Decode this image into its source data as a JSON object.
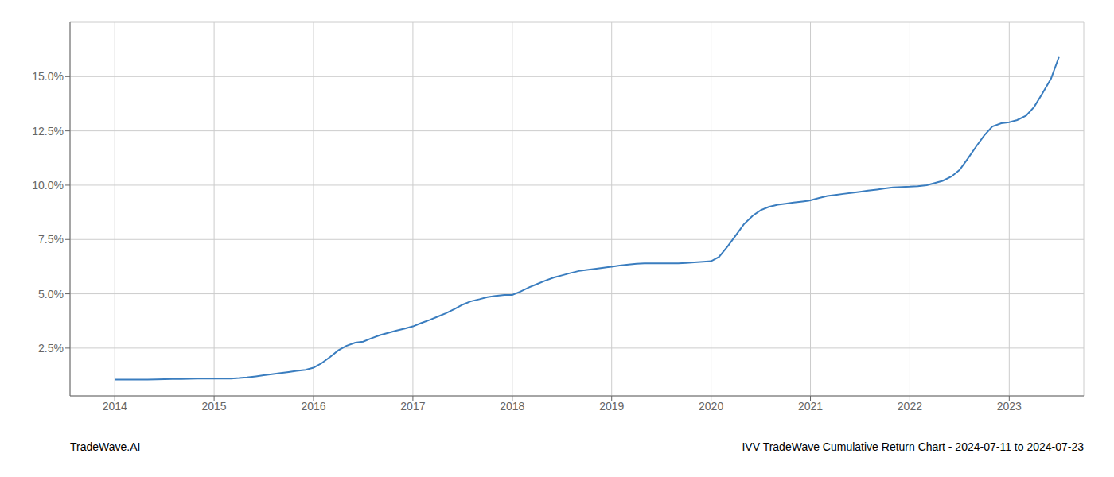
{
  "chart_data": {
    "type": "line",
    "title": "IVV TradeWave Cumulative Return Chart - 2024-07-11 to 2024-07-23",
    "annotations": [
      "TradeWave.AI"
    ],
    "color": "#3a7dbf",
    "grid": true,
    "xlim": [
      2013.55,
      2023.75
    ],
    "xticks": [
      2014,
      2015,
      2016,
      2017,
      2018,
      2019,
      2020,
      2021,
      2022,
      2023
    ],
    "ylim": [
      0.3,
      17.5
    ],
    "yticks": [
      {
        "value": 2.5,
        "label": "2.5%"
      },
      {
        "value": 5.0,
        "label": "5.0%"
      },
      {
        "value": 7.5,
        "label": "7.5%"
      },
      {
        "value": 10.0,
        "label": "10.0%"
      },
      {
        "value": 12.5,
        "label": "12.5%"
      },
      {
        "value": 15.0,
        "label": "15.0%"
      }
    ],
    "x": [
      2014.0,
      2014.08,
      2014.17,
      2014.25,
      2014.33,
      2014.42,
      2014.5,
      2014.58,
      2014.67,
      2014.75,
      2014.83,
      2014.92,
      2015.0,
      2015.08,
      2015.17,
      2015.25,
      2015.33,
      2015.42,
      2015.5,
      2015.58,
      2015.67,
      2015.75,
      2015.83,
      2015.92,
      2016.0,
      2016.08,
      2016.17,
      2016.25,
      2016.33,
      2016.42,
      2016.5,
      2016.58,
      2016.67,
      2016.75,
      2016.83,
      2016.92,
      2017.0,
      2017.08,
      2017.17,
      2017.25,
      2017.33,
      2017.42,
      2017.5,
      2017.58,
      2017.67,
      2017.75,
      2017.83,
      2017.92,
      2018.0,
      2018.08,
      2018.17,
      2018.25,
      2018.33,
      2018.42,
      2018.5,
      2018.58,
      2018.67,
      2018.75,
      2018.83,
      2018.92,
      2019.0,
      2019.08,
      2019.17,
      2019.25,
      2019.33,
      2019.42,
      2019.5,
      2019.58,
      2019.67,
      2019.75,
      2019.83,
      2019.92,
      2020.0,
      2020.08,
      2020.17,
      2020.25,
      2020.33,
      2020.42,
      2020.5,
      2020.58,
      2020.67,
      2020.75,
      2020.83,
      2020.92,
      2021.0,
      2021.08,
      2021.17,
      2021.25,
      2021.33,
      2021.42,
      2021.5,
      2021.58,
      2021.67,
      2021.75,
      2021.83,
      2021.92,
      2022.0,
      2022.08,
      2022.17,
      2022.25,
      2022.33,
      2022.42,
      2022.5,
      2022.58,
      2022.67,
      2022.75,
      2022.83,
      2022.92,
      2023.0,
      2023.08,
      2023.17,
      2023.25,
      2023.33,
      2023.42,
      2023.5
    ],
    "values": [
      1.05,
      1.05,
      1.05,
      1.05,
      1.05,
      1.06,
      1.07,
      1.08,
      1.08,
      1.09,
      1.1,
      1.1,
      1.1,
      1.1,
      1.1,
      1.12,
      1.15,
      1.2,
      1.25,
      1.3,
      1.35,
      1.4,
      1.45,
      1.5,
      1.6,
      1.8,
      2.1,
      2.4,
      2.6,
      2.75,
      2.8,
      2.95,
      3.1,
      3.2,
      3.3,
      3.4,
      3.5,
      3.65,
      3.8,
      3.95,
      4.1,
      4.3,
      4.5,
      4.65,
      4.75,
      4.85,
      4.9,
      4.95,
      4.95,
      5.1,
      5.3,
      5.45,
      5.6,
      5.75,
      5.85,
      5.95,
      6.05,
      6.1,
      6.15,
      6.2,
      6.25,
      6.3,
      6.35,
      6.38,
      6.4,
      6.4,
      6.4,
      6.4,
      6.4,
      6.42,
      6.45,
      6.48,
      6.5,
      6.7,
      7.2,
      7.7,
      8.2,
      8.6,
      8.85,
      9.0,
      9.1,
      9.15,
      9.2,
      9.25,
      9.3,
      9.4,
      9.5,
      9.55,
      9.6,
      9.65,
      9.7,
      9.75,
      9.8,
      9.85,
      9.9,
      9.92,
      9.93,
      9.95,
      10.0,
      10.1,
      10.2,
      10.4,
      10.7,
      11.2,
      11.8,
      12.3,
      12.7,
      12.85,
      12.9,
      13.0,
      13.2,
      13.6,
      14.2,
      14.9,
      15.9
    ]
  }
}
